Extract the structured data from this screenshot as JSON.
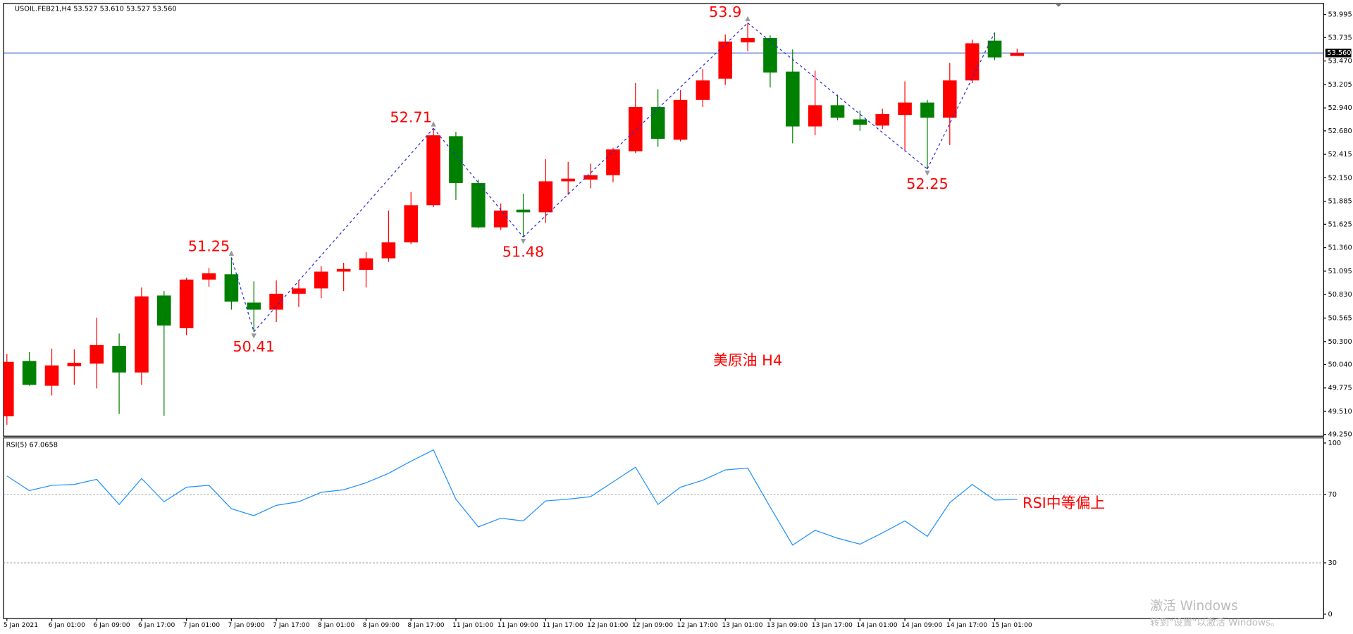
{
  "chart_data": [
    {
      "type": "candlestick",
      "title": "USOIL.FEB21,H4  53.527 53.610 53.527 53.560",
      "categories": [
        "5 Jan 2021",
        null,
        "6 Jan 01:00",
        null,
        "6 Jan 09:00",
        null,
        "6 Jan 17:00",
        null,
        "7 Jan 01:00",
        null,
        "7 Jan 09:00",
        null,
        "7 Jan 17:00",
        null,
        "8 Jan 01:00",
        null,
        "8 Jan 09:00",
        null,
        "8 Jan 17:00",
        null,
        "11 Jan 01:00",
        null,
        "11 Jan 09:00",
        null,
        "11 Jan 17:00",
        null,
        "12 Jan 01:00",
        null,
        "12 Jan 09:00",
        null,
        "12 Jan 17:00",
        null,
        "13 Jan 01:00",
        null,
        "13 Jan 09:00",
        null,
        "13 Jan 17:00",
        null,
        "14 Jan 01:00",
        null,
        "14 Jan 09:00",
        null,
        "14 Jan 17:00",
        null,
        "15 Jan 01:00",
        null
      ],
      "open": [
        49.455,
        50.08,
        49.8,
        50.02,
        50.05,
        50.25,
        49.95,
        50.82,
        50.45,
        51.0,
        51.06,
        50.74,
        50.66,
        50.84,
        50.9,
        51.09,
        51.11,
        51.24,
        51.42,
        51.84,
        52.62,
        52.09,
        51.59,
        51.79,
        51.76,
        52.11,
        52.13,
        52.18,
        52.45,
        52.95,
        52.58,
        53.03,
        53.27,
        53.68,
        53.73,
        53.35,
        52.73,
        52.97,
        52.81,
        52.74,
        52.86,
        53.0,
        52.83,
        53.25,
        53.7,
        53.527
      ],
      "high": [
        50.16,
        50.18,
        50.22,
        50.21,
        50.57,
        50.39,
        50.91,
        50.87,
        51.02,
        51.13,
        51.25,
        50.98,
        50.99,
        50.99,
        51.15,
        51.19,
        51.31,
        51.78,
        51.99,
        52.71,
        52.67,
        52.13,
        51.86,
        51.97,
        52.36,
        52.33,
        52.31,
        52.49,
        53.22,
        53.15,
        53.14,
        53.38,
        53.77,
        53.9,
        53.76,
        53.6,
        53.36,
        53.09,
        52.91,
        52.93,
        53.24,
        53.03,
        53.45,
        53.71,
        53.79,
        53.61
      ],
      "low": [
        49.36,
        49.8,
        49.69,
        49.81,
        49.77,
        49.48,
        49.81,
        49.46,
        50.37,
        50.92,
        50.66,
        50.41,
        50.52,
        50.69,
        50.79,
        50.87,
        50.91,
        51.2,
        51.4,
        51.82,
        51.9,
        51.58,
        51.56,
        51.48,
        51.64,
        51.96,
        52.03,
        52.1,
        52.43,
        52.5,
        52.56,
        52.95,
        53.2,
        53.58,
        53.17,
        52.54,
        52.63,
        52.8,
        52.68,
        52.7,
        52.45,
        52.25,
        52.52,
        53.22,
        53.48,
        53.527
      ],
      "close": [
        50.07,
        49.81,
        50.03,
        50.06,
        50.26,
        49.95,
        50.81,
        50.48,
        51.0,
        51.07,
        50.75,
        50.66,
        50.84,
        50.9,
        51.09,
        51.12,
        51.24,
        51.42,
        51.84,
        52.63,
        52.09,
        51.59,
        51.78,
        51.76,
        52.11,
        52.14,
        52.18,
        52.47,
        52.95,
        52.59,
        53.03,
        53.25,
        53.69,
        53.73,
        53.34,
        52.73,
        52.97,
        52.83,
        52.75,
        52.87,
        53.0,
        52.83,
        53.25,
        53.67,
        53.51,
        53.56
      ],
      "up_color": "#ff0000",
      "down_color": "#008000",
      "ylim": [
        49.23,
        54.12
      ],
      "yticks": [
        53.995,
        53.735,
        {
          "value": 53.47,
          "label": "53.470"
        },
        53.205,
        {
          "value": 52.94,
          "label": "52.940"
        },
        {
          "value": 52.68,
          "label": "52.680"
        },
        52.415,
        {
          "value": 52.15,
          "label": "52.150"
        },
        51.885,
        51.625,
        {
          "value": 51.36,
          "label": "51.360"
        },
        51.095,
        {
          "value": 50.83,
          "label": "50.830"
        },
        50.565,
        {
          "value": 50.3,
          "label": "50.300"
        },
        {
          "value": 50.04,
          "label": "50.040"
        },
        49.775,
        {
          "value": 49.51,
          "label": "49.510"
        },
        {
          "value": 49.25,
          "label": "49.250"
        }
      ],
      "current_price": {
        "value": 53.56,
        "label": "53.560",
        "color": "#5577cc"
      },
      "zigzag": {
        "color": "#2b2bd6",
        "values": [
          null,
          null,
          null,
          null,
          null,
          null,
          null,
          null,
          null,
          null,
          51.25,
          50.41,
          null,
          null,
          null,
          null,
          null,
          null,
          null,
          52.71,
          null,
          null,
          null,
          51.48,
          null,
          null,
          null,
          null,
          null,
          null,
          null,
          null,
          null,
          53.9,
          null,
          null,
          null,
          null,
          null,
          null,
          null,
          52.25,
          null,
          null,
          53.79,
          null
        ],
        "value_labels": [
          null,
          null,
          null,
          null,
          null,
          null,
          null,
          null,
          null,
          null,
          "51.25",
          "50.41",
          null,
          null,
          null,
          null,
          null,
          null,
          null,
          "52.71",
          null,
          null,
          null,
          "51.48",
          null,
          null,
          null,
          null,
          null,
          null,
          null,
          null,
          null,
          "53.9",
          null,
          null,
          null,
          null,
          null,
          null,
          null,
          "52.25",
          null,
          null,
          null,
          null
        ]
      },
      "annotation": "美原油 H4"
    },
    {
      "type": "line",
      "title": "RSI(5) 67.0658",
      "color": "#1e90ff",
      "values": [
        80.8,
        72.2,
        75.3,
        75.8,
        78.8,
        64.1,
        79.3,
        65.7,
        74.2,
        75.3,
        61.6,
        57.6,
        63.6,
        65.7,
        71.2,
        72.7,
        76.8,
        82.3,
        89.4,
        96.0,
        67.2,
        51.0,
        56.1,
        54.5,
        66.2,
        67.2,
        68.7,
        77.3,
        85.9,
        64.1,
        74.2,
        78.3,
        84.3,
        85.4,
        62.6,
        40.4,
        49.0,
        44.4,
        40.9,
        47.5,
        54.5,
        45.5,
        65.2,
        75.8,
        66.7,
        67.0658
      ],
      "ylim": [
        -2.5,
        103
      ],
      "yticks": [
        0,
        30,
        70,
        100
      ],
      "levels": [
        30,
        70
      ],
      "annotation": "RSI中等偏上"
    }
  ],
  "watermark": {
    "title": "激活 Windows",
    "subtitle": "转到\"设置\"以激活 Windows。"
  }
}
